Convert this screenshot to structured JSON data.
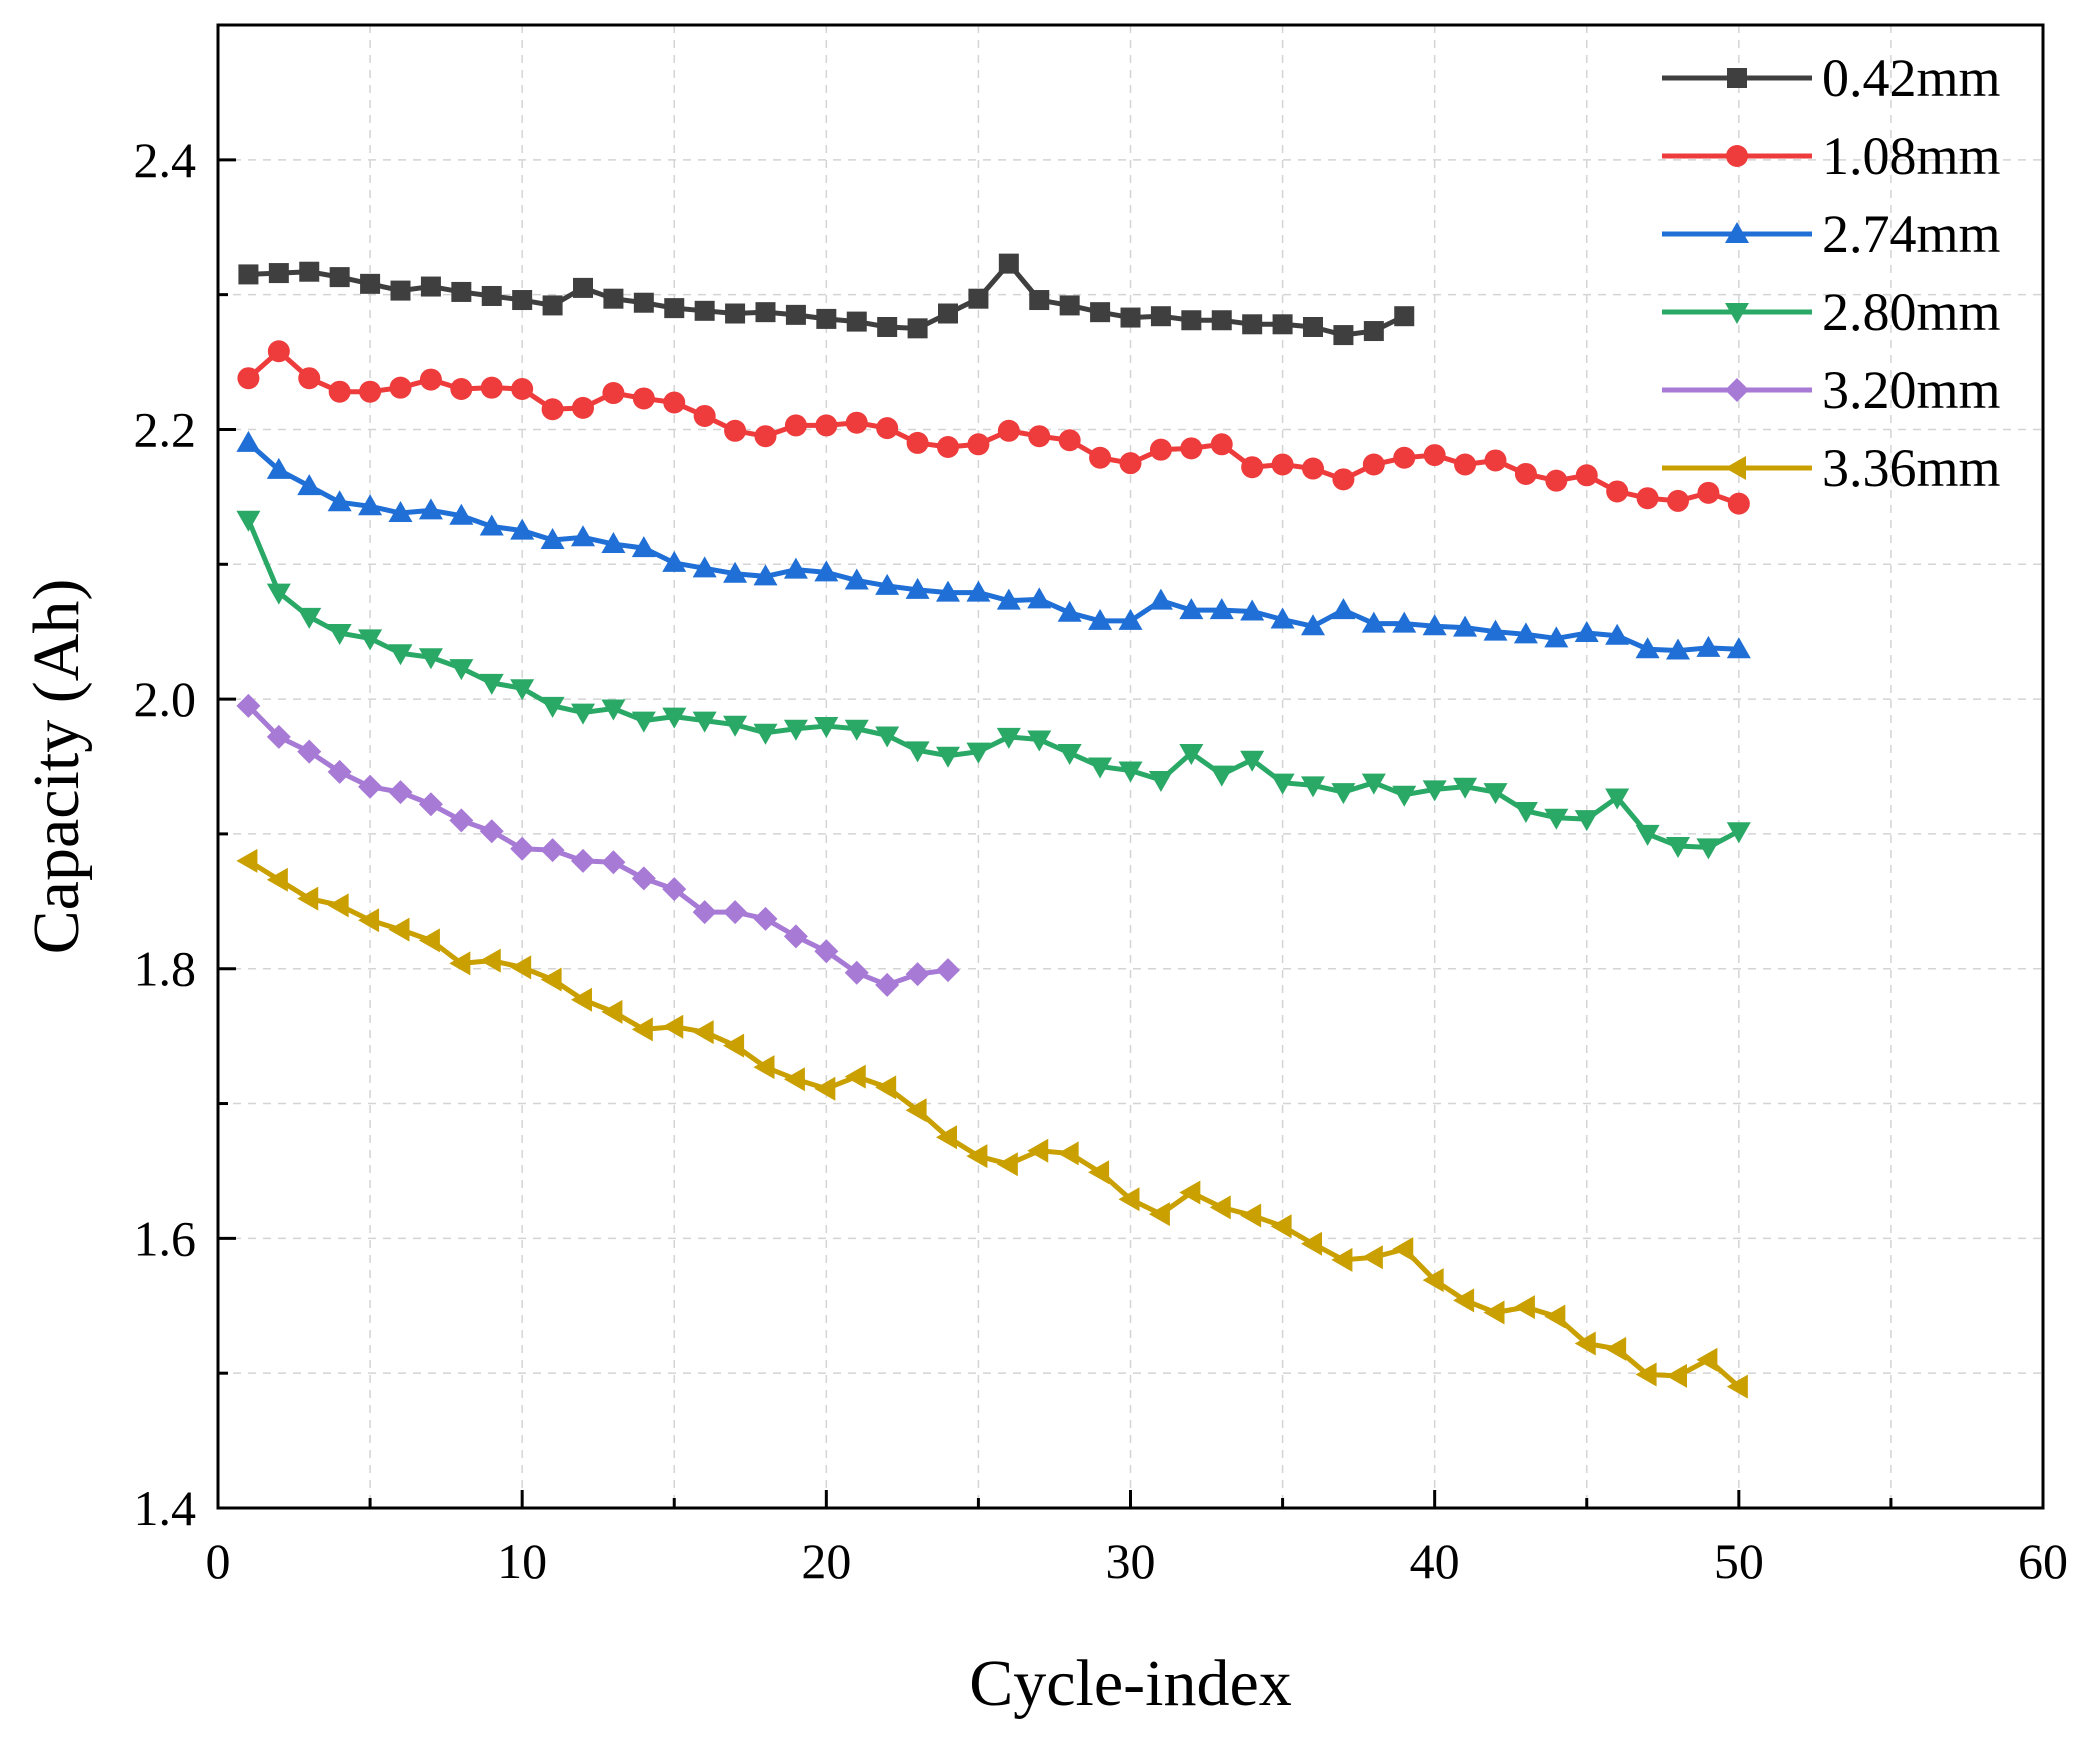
{
  "chart_data": {
    "type": "line",
    "xlabel": "Cycle-index",
    "ylabel": "Capacity (Ah)",
    "xlim": [
      0,
      60
    ],
    "ylim": [
      1.4,
      2.5
    ],
    "xticks": [
      0,
      10,
      20,
      30,
      40,
      50,
      60
    ],
    "xtick_labels": [
      "0",
      "10",
      "20",
      "30",
      "40",
      "50",
      "60"
    ],
    "yticks": [
      1.4,
      1.6,
      1.8,
      2.0,
      2.2,
      2.4
    ],
    "ytick_labels": [
      "1.4",
      "1.6",
      "1.8",
      "2.0",
      "2.2",
      "2.4"
    ],
    "grid": true,
    "legend_position": "top-right",
    "series": [
      {
        "name": "0.42mm",
        "color": "#3f3f3f",
        "marker": "square",
        "x": [
          1,
          2,
          3,
          4,
          5,
          6,
          7,
          8,
          9,
          10,
          11,
          12,
          13,
          14,
          15,
          16,
          17,
          18,
          19,
          20,
          21,
          22,
          23,
          24,
          25,
          26,
          27,
          28,
          29,
          30,
          31,
          32,
          33,
          34,
          35,
          36,
          37,
          38,
          39
        ],
        "y": [
          2.315,
          2.316,
          2.317,
          2.313,
          2.308,
          2.303,
          2.306,
          2.302,
          2.299,
          2.296,
          2.292,
          2.305,
          2.297,
          2.294,
          2.29,
          2.288,
          2.286,
          2.287,
          2.285,
          2.282,
          2.28,
          2.276,
          2.275,
          2.286,
          2.297,
          2.323,
          2.296,
          2.292,
          2.287,
          2.283,
          2.284,
          2.281,
          2.281,
          2.278,
          2.278,
          2.276,
          2.27,
          2.273,
          2.284
        ]
      },
      {
        "name": "1.08mm",
        "color": "#ee3b3b",
        "marker": "circle",
        "x": [
          1,
          2,
          3,
          4,
          5,
          6,
          7,
          8,
          9,
          10,
          11,
          12,
          13,
          14,
          15,
          16,
          17,
          18,
          19,
          20,
          21,
          22,
          23,
          24,
          25,
          26,
          27,
          28,
          29,
          30,
          31,
          32,
          33,
          34,
          35,
          36,
          37,
          38,
          39,
          40,
          41,
          42,
          43,
          44,
          45,
          46,
          47,
          48,
          49,
          50
        ],
        "y": [
          2.238,
          2.258,
          2.238,
          2.228,
          2.228,
          2.231,
          2.237,
          2.23,
          2.231,
          2.23,
          2.215,
          2.216,
          2.227,
          2.223,
          2.22,
          2.21,
          2.199,
          2.195,
          2.203,
          2.203,
          2.205,
          2.201,
          2.19,
          2.187,
          2.189,
          2.199,
          2.195,
          2.192,
          2.179,
          2.175,
          2.185,
          2.186,
          2.189,
          2.172,
          2.174,
          2.171,
          2.163,
          2.174,
          2.179,
          2.181,
          2.174,
          2.177,
          2.167,
          2.162,
          2.166,
          2.154,
          2.149,
          2.147,
          2.153,
          2.145
        ]
      },
      {
        "name": "2.74mm",
        "color": "#1f6fd6",
        "marker": "triangle-up",
        "x": [
          1,
          2,
          3,
          4,
          5,
          6,
          7,
          8,
          9,
          10,
          11,
          12,
          13,
          14,
          15,
          16,
          17,
          18,
          19,
          20,
          21,
          22,
          23,
          24,
          25,
          26,
          27,
          28,
          29,
          30,
          31,
          32,
          33,
          34,
          35,
          36,
          37,
          38,
          39,
          40,
          41,
          42,
          43,
          44,
          45,
          46,
          47,
          48,
          49,
          50
        ],
        "y": [
          2.19,
          2.17,
          2.158,
          2.146,
          2.143,
          2.138,
          2.14,
          2.136,
          2.128,
          2.125,
          2.118,
          2.12,
          2.115,
          2.112,
          2.101,
          2.097,
          2.093,
          2.091,
          2.096,
          2.094,
          2.088,
          2.084,
          2.081,
          2.079,
          2.079,
          2.073,
          2.074,
          2.064,
          2.058,
          2.058,
          2.073,
          2.066,
          2.066,
          2.065,
          2.059,
          2.054,
          2.066,
          2.056,
          2.056,
          2.054,
          2.053,
          2.05,
          2.048,
          2.045,
          2.049,
          2.047,
          2.037,
          2.036,
          2.038,
          2.037
        ]
      },
      {
        "name": "2.80mm",
        "color": "#2aa866",
        "marker": "triangle-down",
        "x": [
          1,
          2,
          3,
          4,
          5,
          6,
          7,
          8,
          9,
          10,
          11,
          12,
          13,
          14,
          15,
          16,
          17,
          18,
          19,
          20,
          21,
          22,
          23,
          24,
          25,
          26,
          27,
          28,
          29,
          30,
          31,
          32,
          33,
          34,
          35,
          36,
          37,
          38,
          39,
          40,
          41,
          42,
          43,
          44,
          45,
          46,
          47,
          48,
          49,
          50
        ],
        "y": [
          2.133,
          2.079,
          2.061,
          2.049,
          2.045,
          2.034,
          2.031,
          2.023,
          2.012,
          2.008,
          1.995,
          1.99,
          1.993,
          1.984,
          1.987,
          1.984,
          1.981,
          1.975,
          1.978,
          1.98,
          1.978,
          1.973,
          1.962,
          1.958,
          1.961,
          1.972,
          1.97,
          1.96,
          1.95,
          1.947,
          1.94,
          1.96,
          1.944,
          1.955,
          1.938,
          1.936,
          1.931,
          1.938,
          1.929,
          1.933,
          1.935,
          1.931,
          1.917,
          1.912,
          1.911,
          1.927,
          1.9,
          1.891,
          1.89,
          1.902
        ]
      },
      {
        "name": "3.20mm",
        "color": "#a77ad6",
        "marker": "diamond",
        "x": [
          1,
          2,
          3,
          4,
          5,
          6,
          7,
          8,
          9,
          10,
          11,
          12,
          13,
          14,
          15,
          16,
          17,
          18,
          19,
          20,
          21,
          22,
          23,
          24
        ],
        "y": [
          1.995,
          1.972,
          1.961,
          1.946,
          1.935,
          1.931,
          1.922,
          1.91,
          1.902,
          1.889,
          1.888,
          1.88,
          1.879,
          1.867,
          1.859,
          1.842,
          1.842,
          1.837,
          1.824,
          1.813,
          1.797,
          1.788,
          1.796,
          1.799
        ]
      },
      {
        "name": "3.36mm",
        "color": "#c9a000",
        "marker": "triangle-left",
        "x": [
          1,
          2,
          3,
          4,
          5,
          6,
          7,
          8,
          9,
          10,
          11,
          12,
          13,
          14,
          15,
          16,
          17,
          18,
          19,
          20,
          21,
          22,
          23,
          24,
          25,
          26,
          27,
          28,
          29,
          30,
          31,
          32,
          33,
          34,
          35,
          36,
          37,
          38,
          39,
          40,
          41,
          42,
          43,
          44,
          45,
          46,
          47,
          48,
          49,
          50
        ],
        "y": [
          1.88,
          1.866,
          1.852,
          1.847,
          1.836,
          1.829,
          1.821,
          1.804,
          1.806,
          1.801,
          1.792,
          1.777,
          1.768,
          1.755,
          1.757,
          1.753,
          1.743,
          1.727,
          1.718,
          1.711,
          1.72,
          1.712,
          1.695,
          1.675,
          1.661,
          1.655,
          1.665,
          1.663,
          1.649,
          1.629,
          1.618,
          1.634,
          1.623,
          1.617,
          1.609,
          1.596,
          1.584,
          1.586,
          1.592,
          1.569,
          1.554,
          1.545,
          1.549,
          1.542,
          1.522,
          1.518,
          1.499,
          1.498,
          1.51,
          1.49
        ]
      }
    ]
  }
}
